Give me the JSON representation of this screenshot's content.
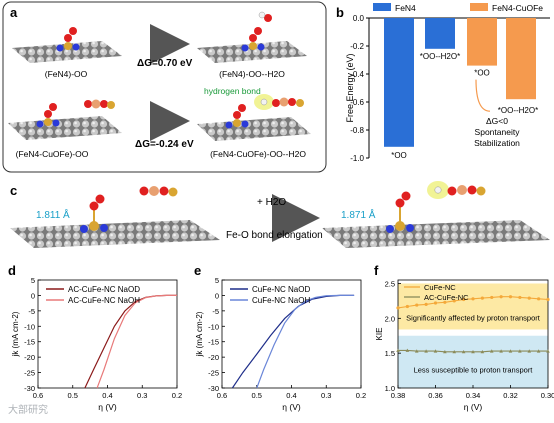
{
  "panels": {
    "a": {
      "label": "a",
      "rows": [
        {
          "left_caption": "(FeN4)-OO",
          "dG_text": "ΔG=0.70 eV",
          "right_caption": "(FeN4)-OO--H2O"
        },
        {
          "left_caption": "(FeN4-CuOFe)-OO",
          "dG_text": "ΔG=-0.24 eV",
          "right_caption": "(FeN4-CuOFe)-OO--H2O"
        }
      ],
      "hbond_label": "hydrogen bond"
    },
    "c": {
      "label": "c",
      "left_distance": "1.811 Å",
      "right_distance": "1.871 Å",
      "arrow_top": "+ H2O",
      "arrow_bottom": "Fe-O bond elongation"
    }
  },
  "watermark": "大部研究",
  "colors": {
    "fen4": "#2a6fd6",
    "fen4cuofe": "#f59a4e",
    "ac": "#8b1a1a",
    "ac_light": "#e87a7a",
    "cufe_dark": "#1f2e8a",
    "cufe_light": "#6a86d8",
    "cufe_kie": "#f4a93a",
    "ac_kie": "#8b8b5a",
    "band_high": "#fde9a4",
    "band_low": "#cfe8f3",
    "cyan_text": "#1aa0c8"
  },
  "chart_data": [
    {
      "id": "b",
      "label": "b",
      "type": "bar",
      "ylabel": "Free Energy (eV)",
      "ylim": [
        -1.0,
        0.0
      ],
      "yticks": [
        "0.0",
        "-0.2",
        "-0.4",
        "-0.6",
        "-0.8",
        "-1.0"
      ],
      "series": [
        {
          "name": "FeN4",
          "values": [
            -0.92,
            -0.22
          ]
        },
        {
          "name": "FeN4-CuOFe",
          "values": [
            -0.34,
            -0.58
          ]
        }
      ],
      "bar_labels": {
        "fen4_oo": "*OO",
        "fen4_ooh2o": "*OO--H2O*",
        "cu_oo": "*OO",
        "cu_ooh2o": "*OO--H2O*"
      },
      "annotation": [
        "ΔG<0",
        "Spontaneity",
        "Stabilization"
      ]
    },
    {
      "id": "d",
      "label": "d",
      "type": "line",
      "xlabel": "η (V)",
      "ylabel": "jk (mA cm-2)",
      "xlim": [
        0.6,
        0.2
      ],
      "ylim": [
        -30,
        5
      ],
      "xticks": [
        "0.6",
        "0.5",
        "0.4",
        "0.3",
        "0.2"
      ],
      "yticks": [
        "5",
        "0",
        "-5",
        "-10",
        "-15",
        "-20",
        "-25",
        "-30"
      ],
      "series": [
        {
          "name": "AC-CuFe-NC NaOD",
          "x": [
            0.465,
            0.44,
            0.41,
            0.38,
            0.35,
            0.32,
            0.29,
            0.26,
            0.23,
            0.2
          ],
          "y": [
            -30,
            -24,
            -17,
            -10,
            -5,
            -2,
            -0.6,
            -0.15,
            0,
            0
          ]
        },
        {
          "name": "AC-CuFe-NC NaOH",
          "x": [
            0.43,
            0.41,
            0.38,
            0.35,
            0.32,
            0.29,
            0.26,
            0.23,
            0.2
          ],
          "y": [
            -30,
            -24,
            -14,
            -6.5,
            -2.4,
            -0.7,
            -0.15,
            0,
            0
          ]
        }
      ]
    },
    {
      "id": "e",
      "label": "e",
      "type": "line",
      "xlabel": "η (V)",
      "ylabel": "jk (mA cm-2)",
      "xlim": [
        0.6,
        0.2
      ],
      "ylim": [
        -30,
        5
      ],
      "xticks": [
        "0.6",
        "0.5",
        "0.4",
        "0.3",
        "0.2"
      ],
      "yticks": [
        "5",
        "0",
        "-5",
        "-10",
        "-15",
        "-20",
        "-25",
        "-30"
      ],
      "series": [
        {
          "name": "CuFe-NC NaOD",
          "x": [
            0.57,
            0.54,
            0.5,
            0.46,
            0.42,
            0.38,
            0.34,
            0.3,
            0.26,
            0.22
          ],
          "y": [
            -30,
            -25,
            -19,
            -13,
            -7.5,
            -3.5,
            -1.2,
            -0.3,
            0,
            0
          ]
        },
        {
          "name": "CuFe-NC NaOH",
          "x": [
            0.5,
            0.48,
            0.45,
            0.42,
            0.39,
            0.36,
            0.33,
            0.3,
            0.26,
            0.22
          ],
          "y": [
            -30,
            -24,
            -16,
            -9,
            -4.5,
            -1.8,
            -0.6,
            -0.1,
            0,
            0
          ]
        }
      ]
    },
    {
      "id": "f",
      "label": "f",
      "type": "line",
      "xlabel": "η (V)",
      "ylabel": "KIE",
      "xlim": [
        0.38,
        0.3
      ],
      "ylim": [
        1.0,
        2.55
      ],
      "xticks": [
        "0.38",
        "0.36",
        "0.34",
        "0.32",
        "0.30"
      ],
      "yticks": [
        "2.5",
        "2.0",
        "1.5",
        "1.0"
      ],
      "bands": [
        {
          "text": "Significantly affected by proton transport",
          "range": [
            1.84,
            2.5
          ]
        },
        {
          "text": "Less susceptible to proton transport",
          "range": [
            1.0,
            1.75
          ]
        }
      ],
      "series": [
        {
          "name": "CuFe-NC",
          "x": [
            0.38,
            0.375,
            0.37,
            0.365,
            0.36,
            0.355,
            0.35,
            0.345,
            0.34,
            0.335,
            0.33,
            0.325,
            0.32,
            0.315,
            0.31,
            0.305,
            0.3
          ],
          "y": [
            2.15,
            2.17,
            2.19,
            2.2,
            2.22,
            2.23,
            2.25,
            2.27,
            2.28,
            2.29,
            2.3,
            2.31,
            2.31,
            2.3,
            2.29,
            2.28,
            2.27
          ]
        },
        {
          "name": "AC-CuFe-NC",
          "x": [
            0.38,
            0.375,
            0.37,
            0.365,
            0.36,
            0.355,
            0.35,
            0.345,
            0.34,
            0.335,
            0.33,
            0.325,
            0.32,
            0.315,
            0.31,
            0.305,
            0.3
          ],
          "y": [
            1.54,
            1.54,
            1.53,
            1.53,
            1.53,
            1.52,
            1.52,
            1.52,
            1.52,
            1.52,
            1.53,
            1.53,
            1.53,
            1.53,
            1.53,
            1.53,
            1.53
          ]
        }
      ]
    }
  ]
}
